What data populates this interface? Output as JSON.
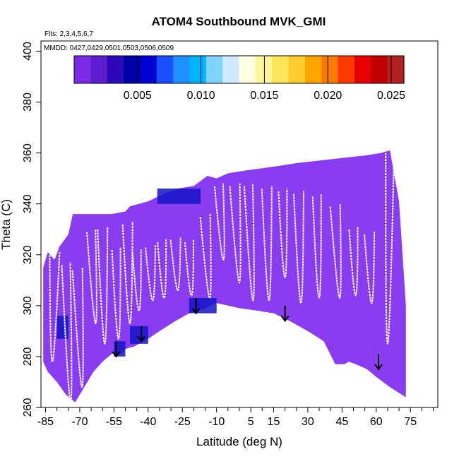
{
  "chart_data": {
    "type": "heatmap",
    "title": "ATOM4 Southbound MVK_GMI",
    "annotations": [
      "Flts: 2,3,4,5,6,7",
      "MMDD: 0427,0429,0501,0503,0506,0509"
    ],
    "xlabel": "Latitude (deg N)",
    "ylabel": "Theta (C)",
    "xlim": [
      -87,
      87
    ],
    "ylim": [
      260,
      404
    ],
    "x_tick_values": [
      -85,
      -70,
      -55,
      -40,
      -25,
      -10,
      5,
      15,
      30,
      45,
      60,
      75
    ],
    "x_tick_labels": [
      "-85",
      "-70",
      "-55",
      "-40",
      "-25",
      "-10",
      "5",
      "15",
      "30",
      "45",
      "60",
      "75"
    ],
    "x_minor_step": 5,
    "y_tick_values": [
      260,
      280,
      300,
      320,
      340,
      360,
      380,
      400
    ],
    "y_tick_labels": [
      "260",
      "280",
      "300",
      "320",
      "340",
      "360",
      "380",
      "400"
    ],
    "colorbar": {
      "min": 0,
      "max": 0.026,
      "tick_values": [
        0.005,
        0.01,
        0.015,
        0.02,
        0.025
      ],
      "tick_labels": [
        "0.005",
        "0.010",
        "0.015",
        "0.020",
        "0.025"
      ],
      "colors": [
        "#7a2be6",
        "#5a1ed0",
        "#2a0ab8",
        "#0000a8",
        "#0000d0",
        "#1a50ff",
        "#1e90ff",
        "#00b4ff",
        "#7fd4ff",
        "#cfeaff",
        "#ffffe0",
        "#fff59a",
        "#ffe45a",
        "#ffcc2e",
        "#ffa500",
        "#ff7a00",
        "#ff3a00",
        "#e60000",
        "#c00000",
        "#b22222"
      ]
    },
    "field": {
      "fill_color": "#8a3cf0",
      "enhanced_color": "#1414c8",
      "top_boundary": [
        [
          -86,
          315
        ],
        [
          -84,
          321
        ],
        [
          -81,
          318
        ],
        [
          -79,
          323
        ],
        [
          -75,
          328
        ],
        [
          -73,
          336
        ],
        [
          -66,
          336
        ],
        [
          -63,
          336
        ],
        [
          -56,
          336
        ],
        [
          -50,
          337
        ],
        [
          -48,
          339
        ],
        [
          -40,
          341
        ],
        [
          -33,
          344
        ],
        [
          -27,
          346
        ],
        [
          -20,
          347
        ],
        [
          -17,
          349
        ],
        [
          -14,
          351
        ],
        [
          -10,
          350
        ],
        [
          -5,
          352
        ],
        [
          2,
          353
        ],
        [
          10,
          354
        ],
        [
          18,
          355
        ],
        [
          25,
          356
        ],
        [
          35,
          357
        ],
        [
          45,
          358
        ],
        [
          55,
          359
        ],
        [
          62,
          360
        ],
        [
          66,
          361
        ],
        [
          70,
          341
        ],
        [
          73,
          300
        ]
      ],
      "bottom_boundary": [
        [
          73,
          264
        ],
        [
          66,
          268
        ],
        [
          60,
          272
        ],
        [
          56,
          275
        ],
        [
          51,
          277
        ],
        [
          48,
          278
        ],
        [
          46,
          277
        ],
        [
          42,
          277
        ],
        [
          37,
          286
        ],
        [
          30,
          290
        ],
        [
          22,
          294
        ],
        [
          15,
          297
        ],
        [
          8,
          298
        ],
        [
          0,
          299
        ],
        [
          -5,
          300
        ],
        [
          -10,
          301
        ],
        [
          -15,
          299
        ],
        [
          -22,
          297
        ],
        [
          -28,
          294
        ],
        [
          -35,
          290
        ],
        [
          -40,
          287
        ],
        [
          -42,
          286
        ],
        [
          -46,
          284
        ],
        [
          -50,
          283
        ],
        [
          -52,
          281
        ],
        [
          -56,
          281
        ],
        [
          -60,
          278
        ],
        [
          -64,
          274
        ],
        [
          -68,
          268
        ],
        [
          -72,
          262
        ],
        [
          -76,
          265
        ],
        [
          -80,
          270
        ],
        [
          -84,
          274
        ],
        [
          -86,
          278
        ]
      ],
      "enhanced_patches": [
        [
          [
            -22,
            303
          ],
          [
            -10,
            303
          ],
          [
            -10,
            297
          ],
          [
            -22,
            297
          ]
        ],
        [
          [
            -48,
            292
          ],
          [
            -40,
            292
          ],
          [
            -40,
            285
          ],
          [
            -48,
            285
          ]
        ],
        [
          [
            -55,
            286
          ],
          [
            -50,
            286
          ],
          [
            -50,
            280
          ],
          [
            -55,
            280
          ]
        ],
        [
          [
            -36,
            346
          ],
          [
            -17,
            346
          ],
          [
            -17,
            340
          ],
          [
            -36,
            340
          ]
        ],
        [
          [
            -80,
            296
          ],
          [
            -75,
            296
          ],
          [
            -75,
            287
          ],
          [
            -80,
            287
          ]
        ]
      ]
    },
    "flight_profiles_color": "#ffffff",
    "flight_profiles": [
      {
        "top": [
          -81,
          321
        ],
        "bottom": [
          -82,
          278
        ]
      },
      {
        "top": [
          -76,
          317
        ],
        "bottom": [
          -74,
          262
        ]
      },
      {
        "top": [
          -71,
          315
        ],
        "bottom": [
          -69,
          268
        ]
      },
      {
        "top": [
          -65,
          330
        ],
        "bottom": [
          -63,
          293
        ]
      },
      {
        "top": [
          -60,
          331
        ],
        "bottom": [
          -59,
          285
        ]
      },
      {
        "top": [
          -54,
          323
        ],
        "bottom": [
          -53,
          287
        ]
      },
      {
        "top": [
          -49,
          333
        ],
        "bottom": [
          -48,
          293
        ]
      },
      {
        "top": [
          -45,
          322
        ],
        "bottom": [
          -44,
          298
        ]
      },
      {
        "top": [
          -39,
          324
        ],
        "bottom": [
          -38,
          302
        ]
      },
      {
        "top": [
          -34,
          326
        ],
        "bottom": [
          -33,
          303
        ]
      },
      {
        "top": [
          -28,
          327
        ],
        "bottom": [
          -27,
          306
        ]
      },
      {
        "top": [
          -22,
          326
        ],
        "bottom": [
          -21,
          304
        ]
      },
      {
        "top": [
          -15,
          336
        ],
        "bottom": [
          -13,
          303
        ]
      },
      {
        "top": [
          -9,
          348
        ],
        "bottom": [
          -7,
          318
        ]
      },
      {
        "top": [
          -2,
          348
        ],
        "bottom": [
          0,
          309
        ]
      },
      {
        "top": [
          4,
          348
        ],
        "bottom": [
          6,
          302
        ]
      },
      {
        "top": [
          12,
          347
        ],
        "bottom": [
          13,
          302
        ]
      },
      {
        "top": [
          19,
          346
        ],
        "bottom": [
          20,
          311
        ]
      },
      {
        "top": [
          26,
          345
        ],
        "bottom": [
          27,
          301
        ]
      },
      {
        "top": [
          34,
          344
        ],
        "bottom": [
          35,
          303
        ]
      },
      {
        "top": [
          42,
          340
        ],
        "bottom": [
          44,
          303
        ]
      },
      {
        "top": [
          50,
          331
        ],
        "bottom": [
          51,
          304
        ]
      },
      {
        "top": [
          57,
          329
        ],
        "bottom": [
          58,
          301
        ]
      },
      {
        "top": [
          66,
          361
        ],
        "bottom": [
          65,
          285
        ]
      }
    ],
    "arrows": [
      {
        "x": -54,
        "from": 286,
        "to": 280
      },
      {
        "x": -43,
        "from": 292,
        "to": 286
      },
      {
        "x": -19,
        "from": 303,
        "to": 297
      },
      {
        "x": 20,
        "from": 300,
        "to": 294
      },
      {
        "x": 61,
        "from": 281,
        "to": 275
      }
    ]
  }
}
